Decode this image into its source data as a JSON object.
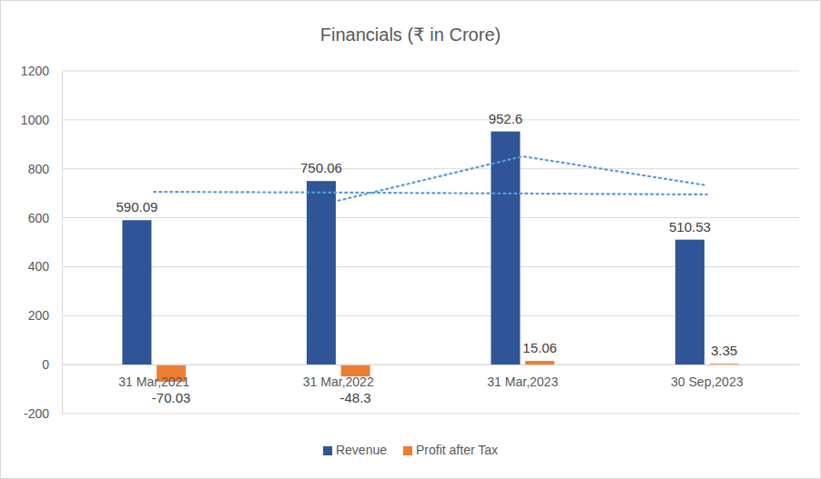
{
  "chart_data": {
    "type": "bar",
    "title": "Financials (₹ in Crore)",
    "categories": [
      "31 Mar,2021",
      "31 Mar,2022",
      "31 Mar,2023",
      "30 Sep,2023"
    ],
    "series": [
      {
        "name": "Revenue",
        "color": "#2f5597",
        "data_labels": true,
        "values": [
          590.09,
          750.06,
          952.6,
          510.53
        ]
      },
      {
        "name": "Profit after Tax",
        "color": "#ed7d31",
        "data_labels": true,
        "values": [
          -70.03,
          -48.3,
          15.06,
          3.35
        ]
      },
      {
        "type": "line",
        "line_style": "dotted",
        "color": "#5b9bd5",
        "values": [
          706,
          703,
          699,
          695
        ]
      },
      {
        "type": "line",
        "line_style": "dotted",
        "color": "#5b9bd5",
        "values": [
          null,
          670,
          851,
          732
        ]
      }
    ],
    "ylim": [
      -200,
      1200
    ],
    "yticks": [
      -200,
      0,
      200,
      400,
      600,
      800,
      1000,
      1200
    ],
    "grid": true,
    "legend": "bottom"
  }
}
